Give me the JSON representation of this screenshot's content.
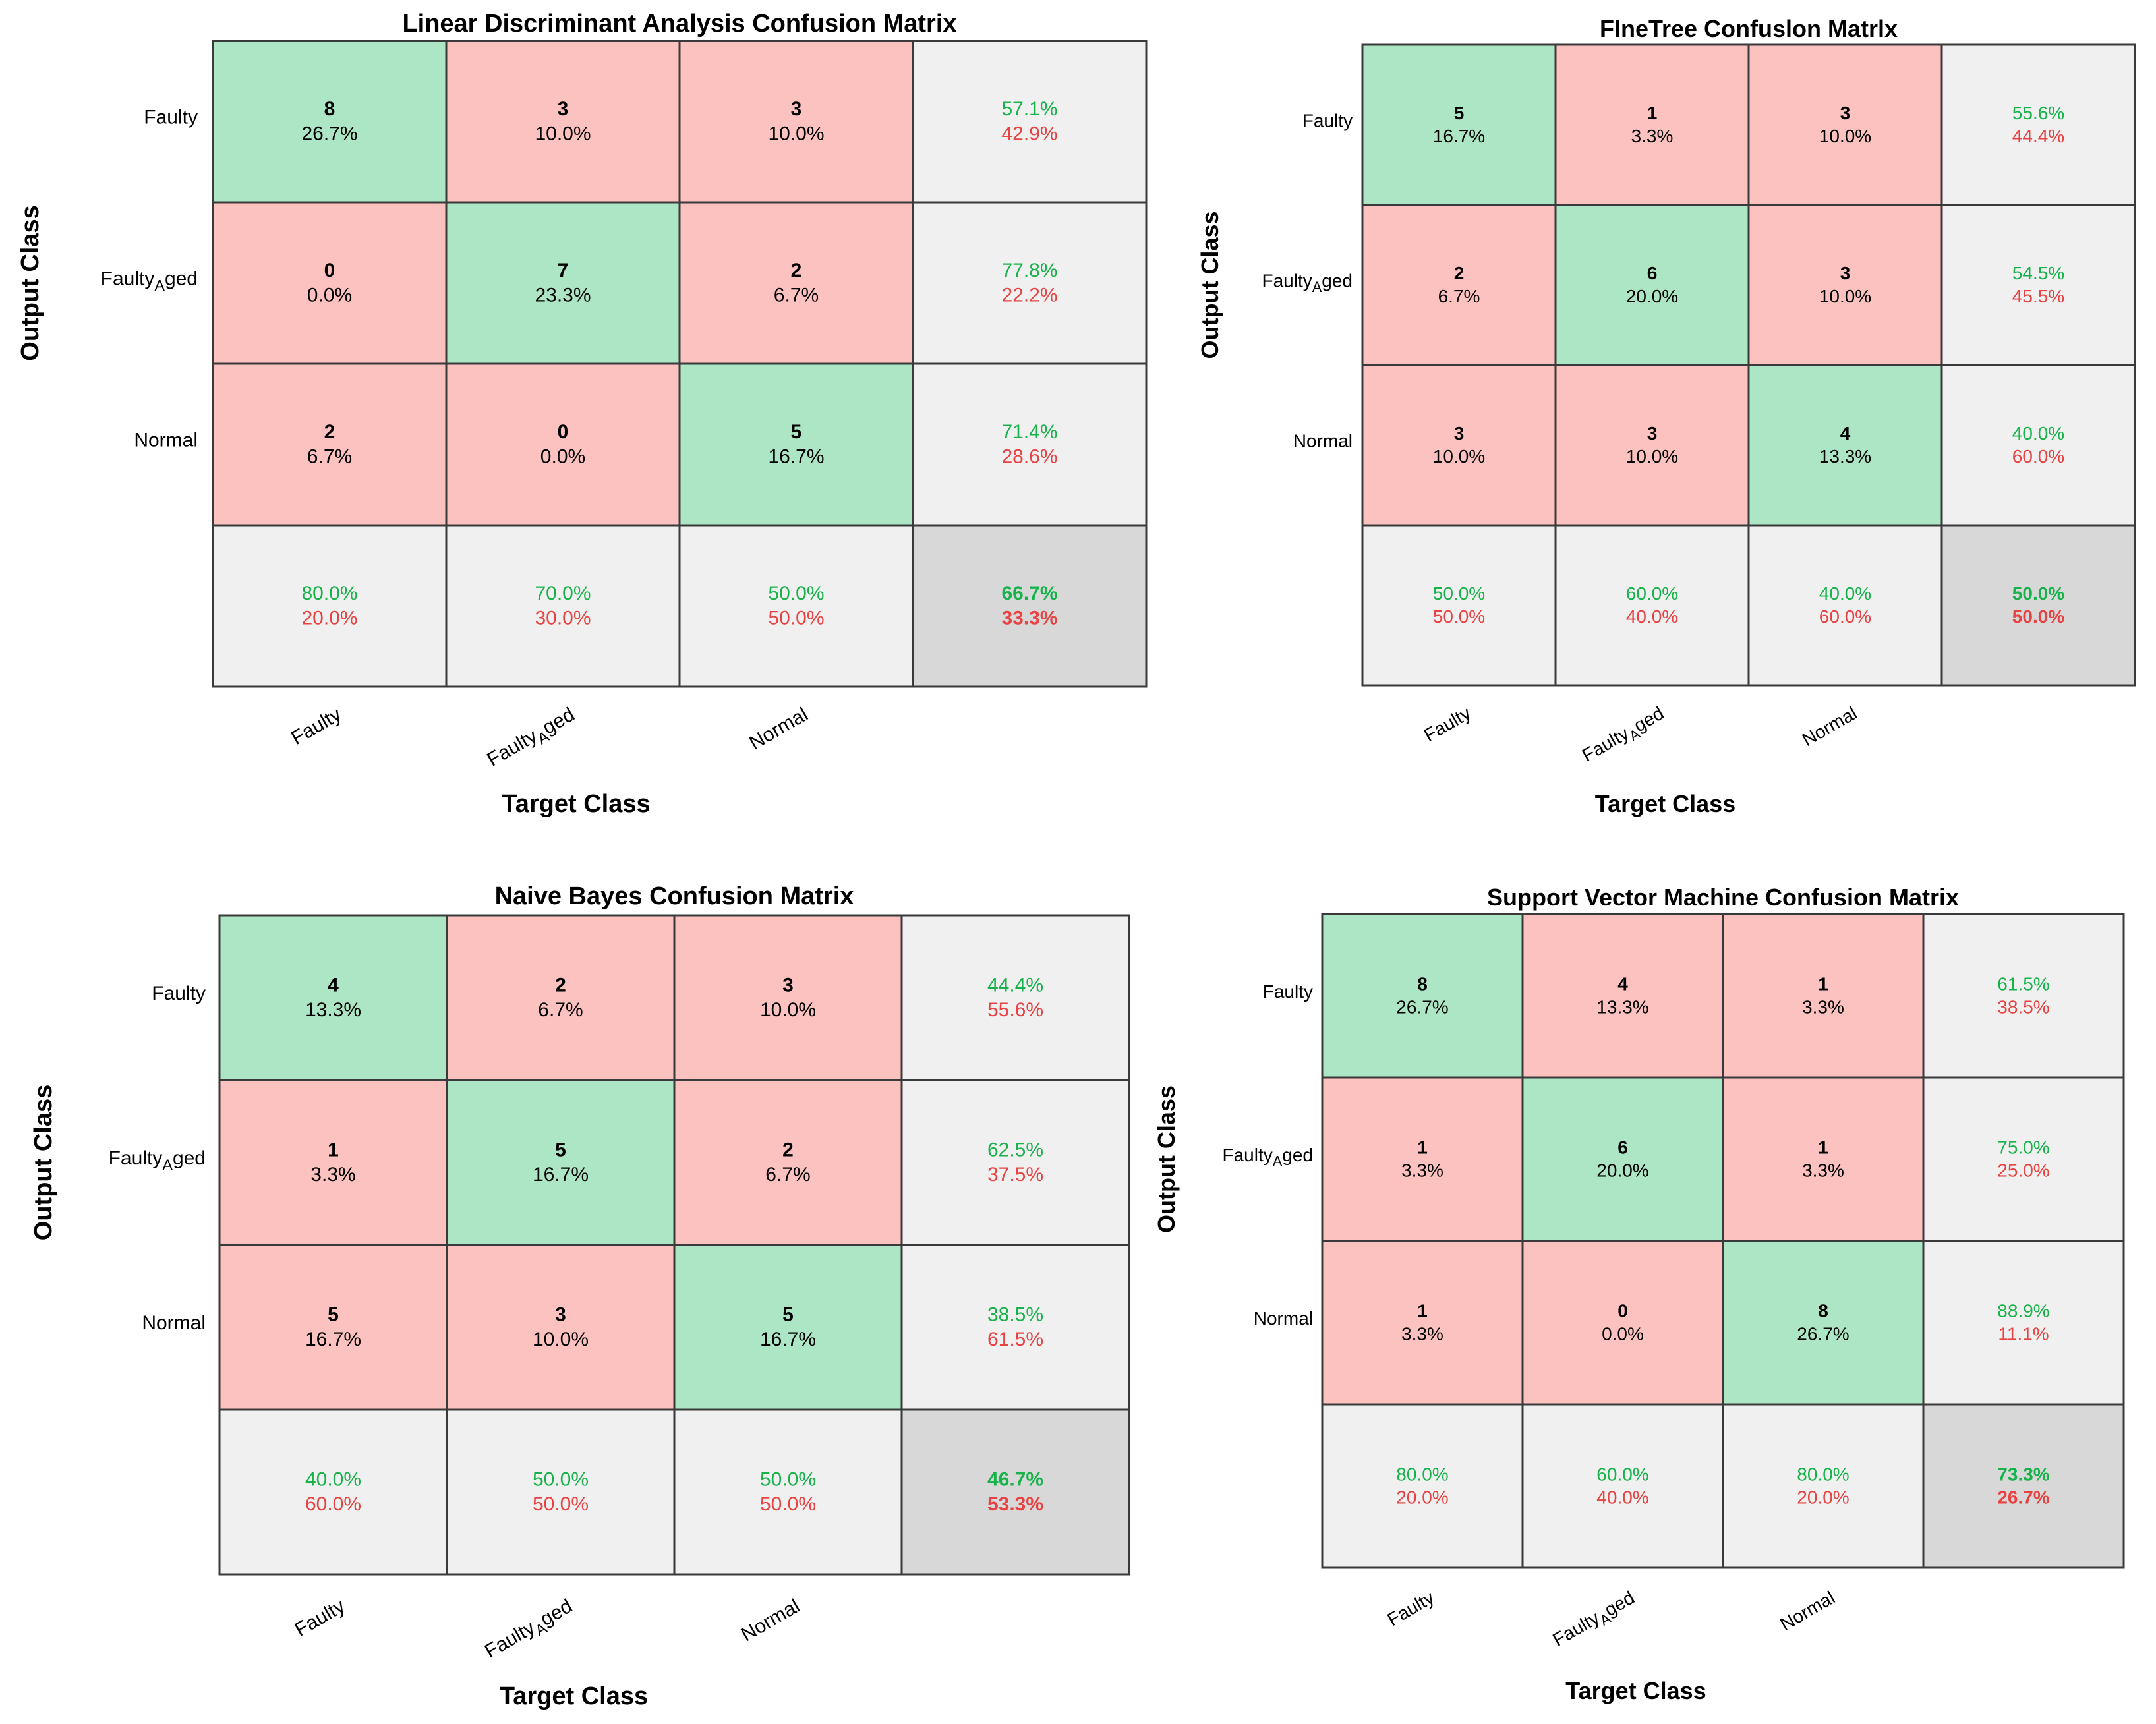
{
  "labels": {
    "output_class": "Output Class",
    "target_class": "Target Class",
    "classes": [
      "Faulty",
      "Faulty_Aged",
      "Normal"
    ]
  },
  "colors": {
    "correct_fill": "#ADE6C4",
    "wrong_fill": "#FCC2C0",
    "summary_fill": "#F0F0F0",
    "overall_fill": "#D8D8D8",
    "green_text": "#17B34A",
    "red_text": "#E84242",
    "border": "#3A3A3A"
  },
  "chart_data": [
    {
      "type": "heatmap",
      "title": "Linear Discriminant Analysis Confusion Matrix",
      "xlabel": "Target Class",
      "ylabel": "Output Class",
      "rows": [
        "Faulty",
        "Faulty_Aged",
        "Normal"
      ],
      "cols": [
        "Faulty",
        "Faulty_Aged",
        "Normal"
      ],
      "counts": [
        [
          8,
          3,
          3
        ],
        [
          0,
          7,
          2
        ],
        [
          2,
          0,
          5
        ]
      ],
      "percents": [
        [
          "26.7%",
          "10.0%",
          "10.0%"
        ],
        [
          "0.0%",
          "23.3%",
          "6.7%"
        ],
        [
          "6.7%",
          "0.0%",
          "16.7%"
        ]
      ],
      "row_summary": [
        [
          "57.1%",
          "42.9%"
        ],
        [
          "77.8%",
          "22.2%"
        ],
        [
          "71.4%",
          "28.6%"
        ]
      ],
      "col_summary": [
        [
          "80.0%",
          "20.0%"
        ],
        [
          "70.0%",
          "30.0%"
        ],
        [
          "50.0%",
          "50.0%"
        ]
      ],
      "overall": [
        "66.7%",
        "33.3%"
      ]
    },
    {
      "type": "heatmap",
      "title": "FIneTree Confuslon Matrlx",
      "xlabel": "Target Class",
      "ylabel": "Output Class",
      "rows": [
        "Faulty",
        "Faulty_Aged",
        "Normal"
      ],
      "cols": [
        "Faulty",
        "Faulty_Aged",
        "Normal"
      ],
      "counts": [
        [
          5,
          1,
          3
        ],
        [
          2,
          6,
          3
        ],
        [
          3,
          3,
          4
        ]
      ],
      "percents": [
        [
          "16.7%",
          "3.3%",
          "10.0%"
        ],
        [
          "6.7%",
          "20.0%",
          "10.0%"
        ],
        [
          "10.0%",
          "10.0%",
          "13.3%"
        ]
      ],
      "row_summary": [
        [
          "55.6%",
          "44.4%"
        ],
        [
          "54.5%",
          "45.5%"
        ],
        [
          "40.0%",
          "60.0%"
        ]
      ],
      "col_summary": [
        [
          "50.0%",
          "50.0%"
        ],
        [
          "60.0%",
          "40.0%"
        ],
        [
          "40.0%",
          "60.0%"
        ]
      ],
      "overall": [
        "50.0%",
        "50.0%"
      ]
    },
    {
      "type": "heatmap",
      "title": "Naive Bayes Confusion Matrix",
      "xlabel": "Target Class",
      "ylabel": "Output Class",
      "rows": [
        "Faulty",
        "Faulty_Aged",
        "Normal"
      ],
      "cols": [
        "Faulty",
        "Faulty_Aged",
        "Normal"
      ],
      "counts": [
        [
          4,
          2,
          3
        ],
        [
          1,
          5,
          2
        ],
        [
          5,
          3,
          5
        ]
      ],
      "percents": [
        [
          "13.3%",
          "6.7%",
          "10.0%"
        ],
        [
          "3.3%",
          "16.7%",
          "6.7%"
        ],
        [
          "16.7%",
          "10.0%",
          "16.7%"
        ]
      ],
      "row_summary": [
        [
          "44.4%",
          "55.6%"
        ],
        [
          "62.5%",
          "37.5%"
        ],
        [
          "38.5%",
          "61.5%"
        ]
      ],
      "col_summary": [
        [
          "40.0%",
          "60.0%"
        ],
        [
          "50.0%",
          "50.0%"
        ],
        [
          "50.0%",
          "50.0%"
        ]
      ],
      "overall": [
        "46.7%",
        "53.3%"
      ]
    },
    {
      "type": "heatmap",
      "title": "Support Vector Machine Confusion Matrix",
      "xlabel": "Target Class",
      "ylabel": "Output Class",
      "rows": [
        "Faulty",
        "Faulty_Aged",
        "Normal"
      ],
      "cols": [
        "Faulty",
        "Faulty_Aged",
        "Normal"
      ],
      "counts": [
        [
          8,
          4,
          1
        ],
        [
          1,
          6,
          1
        ],
        [
          1,
          0,
          8
        ]
      ],
      "percents": [
        [
          "26.7%",
          "13.3%",
          "3.3%"
        ],
        [
          "3.3%",
          "20.0%",
          "3.3%"
        ],
        [
          "3.3%",
          "0.0%",
          "26.7%"
        ]
      ],
      "row_summary": [
        [
          "61.5%",
          "38.5%"
        ],
        [
          "75.0%",
          "25.0%"
        ],
        [
          "88.9%",
          "11.1%"
        ]
      ],
      "col_summary": [
        [
          "80.0%",
          "20.0%"
        ],
        [
          "60.0%",
          "40.0%"
        ],
        [
          "80.0%",
          "20.0%"
        ]
      ],
      "overall": [
        "73.3%",
        "26.7%"
      ]
    }
  ]
}
